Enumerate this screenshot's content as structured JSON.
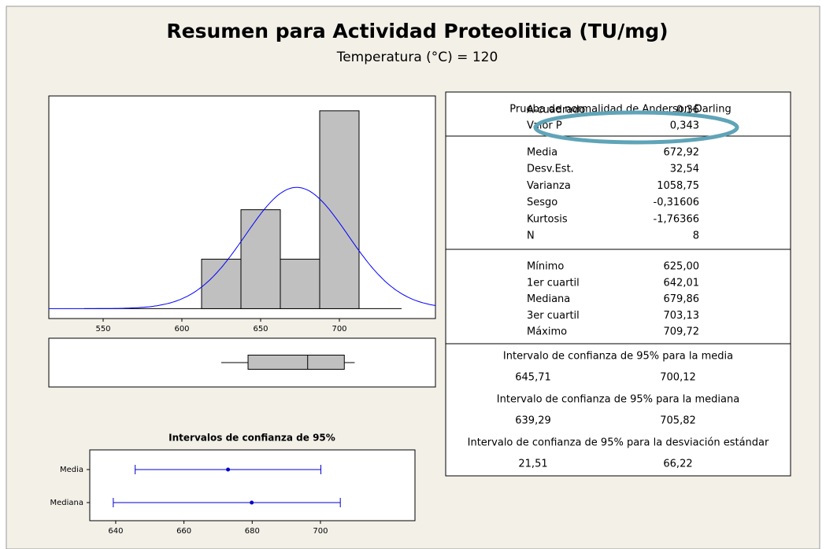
{
  "title": "Resumen para Actividad Proteolitica (TU/mg)",
  "subtitle": "Temperatura (°C) = 120",
  "chart_data": [
    {
      "type": "histogram",
      "bins": [
        612.5,
        637.5,
        662.5,
        687.5,
        712.5
      ],
      "counts": [
        1,
        2,
        1,
        4
      ],
      "xlim": [
        515.5,
        761
      ],
      "xticks": [
        550,
        600,
        650,
        700
      ],
      "ylim": [
        -0.2,
        4.3
      ],
      "color": "#c0c0c0",
      "normal_fit": {
        "mean": 672.92,
        "sd": 32.54,
        "color": "#0000ff"
      }
    },
    {
      "type": "box",
      "min": 625.0,
      "q1": 642.01,
      "median": 679.86,
      "q3": 703.13,
      "max": 709.72,
      "xlim": [
        515.5,
        761
      ],
      "color": "#c0c0c0"
    },
    {
      "type": "interval",
      "title": "Intervalos de confianza de 95%",
      "categories": [
        "Media",
        "Mediana"
      ],
      "values": [
        672.92,
        679.86
      ],
      "lower": [
        645.71,
        639.29
      ],
      "upper": [
        700.12,
        705.82
      ],
      "xlim": [
        632.4,
        727.7
      ],
      "xticks": [
        640,
        660,
        680,
        700
      ],
      "color": "#0000cc"
    }
  ],
  "stats": {
    "normality": {
      "title": "Prueba de normalidad de Anderson-Darling",
      "rows": [
        [
          "A-cuadrado",
          "0,36"
        ],
        [
          "Valor P",
          "0,343"
        ]
      ]
    },
    "descriptive": [
      [
        "Media",
        "672,92"
      ],
      [
        "Desv.Est.",
        "32,54"
      ],
      [
        "Varianza",
        "1058,75"
      ],
      [
        "Sesgo",
        "-0,31606"
      ],
      [
        "Kurtosis",
        "-1,76366"
      ],
      [
        "N",
        "8"
      ]
    ],
    "quartiles": [
      [
        "Mínimo",
        "625,00"
      ],
      [
        "1er cuartil",
        "642,01"
      ],
      [
        "Mediana",
        "679,86"
      ],
      [
        "3er cuartil",
        "703,13"
      ],
      [
        "Máximo",
        "709,72"
      ]
    ],
    "intervals": [
      {
        "title": "Intervalo de confianza de 95% para la media",
        "values": [
          "645,71",
          "700,12"
        ]
      },
      {
        "title": "Intervalo de confianza de 95% para la mediana",
        "values": [
          "639,29",
          "705,82"
        ]
      },
      {
        "title": "Intervalo de confianza de 95% para la desviación estándar",
        "values": [
          "21,51",
          "66,22"
        ]
      }
    ]
  }
}
